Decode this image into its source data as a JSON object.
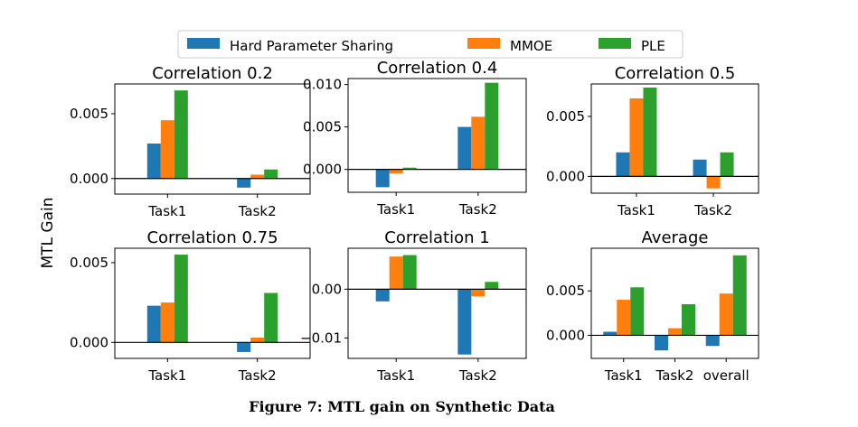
{
  "figure": {
    "caption": "Figure 7: MTL gain on Synthetic Data",
    "ylabel": "MTL Gain"
  },
  "legend": {
    "placement": "top-center",
    "entries": [
      {
        "name": "Hard Parameter Sharing",
        "color": "#1f77b4"
      },
      {
        "name": "MMOE",
        "color": "#ff7f0e"
      },
      {
        "name": "PLE",
        "color": "#2ca02c"
      }
    ]
  },
  "chart_data": [
    {
      "type": "bar",
      "title": "Correlation 0.2",
      "categories": [
        "Task1",
        "Task2"
      ],
      "ylim": [
        -0.0012,
        0.0073
      ],
      "yticks": [
        0.0,
        0.005
      ],
      "ytick_labels": [
        "0.000",
        "0.005"
      ],
      "series": [
        {
          "name": "Hard Parameter Sharing",
          "values": [
            0.0027,
            -0.0007
          ]
        },
        {
          "name": "MMOE",
          "values": [
            0.0045,
            0.0003
          ]
        },
        {
          "name": "PLE",
          "values": [
            0.0068,
            0.0007
          ]
        }
      ]
    },
    {
      "type": "bar",
      "title": "Correlation 0.4",
      "categories": [
        "Task1",
        "Task2"
      ],
      "ylim": [
        -0.0027,
        0.0107
      ],
      "yticks": [
        0.0,
        0.005,
        0.01
      ],
      "ytick_labels": [
        "0.000",
        "0.005",
        "0.010"
      ],
      "series": [
        {
          "name": "Hard Parameter Sharing",
          "values": [
            -0.0021,
            0.005
          ]
        },
        {
          "name": "MMOE",
          "values": [
            -0.0005,
            0.0062
          ]
        },
        {
          "name": "PLE",
          "values": [
            0.0002,
            0.0102
          ]
        }
      ]
    },
    {
      "type": "bar",
      "title": "Correlation 0.5",
      "categories": [
        "Task1",
        "Task2"
      ],
      "ylim": [
        -0.0014,
        0.0077
      ],
      "yticks": [
        0.0,
        0.005
      ],
      "ytick_labels": [
        "0.000",
        "0.005"
      ],
      "series": [
        {
          "name": "Hard Parameter Sharing",
          "values": [
            0.002,
            0.0014
          ]
        },
        {
          "name": "MMOE",
          "values": [
            0.0065,
            -0.001
          ]
        },
        {
          "name": "PLE",
          "values": [
            0.0074,
            0.002
          ]
        }
      ]
    },
    {
      "type": "bar",
      "title": "Correlation 0.75",
      "categories": [
        "Task1",
        "Task2"
      ],
      "ylim": [
        -0.001,
        0.0059
      ],
      "yticks": [
        0.0,
        0.005
      ],
      "ytick_labels": [
        "0.000",
        "0.005"
      ],
      "series": [
        {
          "name": "Hard Parameter Sharing",
          "values": [
            0.0023,
            -0.0006
          ]
        },
        {
          "name": "MMOE",
          "values": [
            0.0025,
            0.0003
          ]
        },
        {
          "name": "PLE",
          "values": [
            0.0055,
            0.0031
          ]
        }
      ]
    },
    {
      "type": "bar",
      "title": "Correlation 1",
      "categories": [
        "Task1",
        "Task2"
      ],
      "ylim": [
        -0.0142,
        0.0084
      ],
      "yticks": [
        -0.01,
        0.0
      ],
      "ytick_labels": [
        "−0.01",
        "0.00"
      ],
      "series": [
        {
          "name": "Hard Parameter Sharing",
          "values": [
            -0.0025,
            -0.0134
          ]
        },
        {
          "name": "MMOE",
          "values": [
            0.0067,
            -0.0015
          ]
        },
        {
          "name": "PLE",
          "values": [
            0.007,
            0.0015
          ]
        }
      ]
    },
    {
      "type": "bar",
      "title": "Average",
      "categories": [
        "Task1",
        "Task2",
        "overall"
      ],
      "ylim": [
        -0.0026,
        0.0098
      ],
      "yticks": [
        0.0,
        0.005
      ],
      "ytick_labels": [
        "0.000",
        "0.005"
      ],
      "series": [
        {
          "name": "Hard Parameter Sharing",
          "values": [
            0.0004,
            -0.0017,
            -0.0012
          ]
        },
        {
          "name": "MMOE",
          "values": [
            0.004,
            0.0008,
            0.0047
          ]
        },
        {
          "name": "PLE",
          "values": [
            0.0054,
            0.0035,
            0.009
          ]
        }
      ]
    }
  ]
}
